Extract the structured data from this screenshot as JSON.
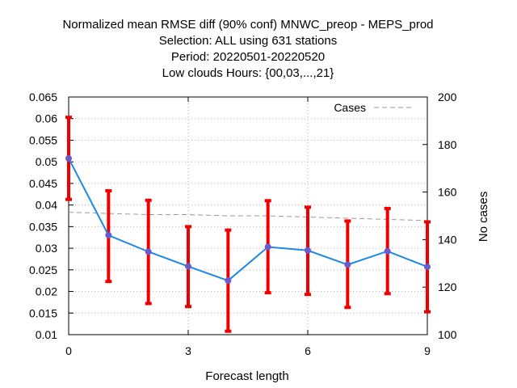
{
  "chart_data": {
    "type": "line",
    "title_lines": [
      "Normalized mean RMSE diff (90% conf) MNWC_preop - MEPS_prod",
      "Selection: ALL using   631 stations",
      "Period: 20220501-20220520",
      "Low clouds   Hours: {00,03,...,21}"
    ],
    "xlabel": "Forecast length",
    "ylabel": "",
    "y2label": "No cases",
    "xlim": [
      0,
      9
    ],
    "ylim": [
      0.01,
      0.065
    ],
    "y2lim": [
      100,
      200
    ],
    "x_ticks": [
      0,
      3,
      6,
      9
    ],
    "x_tick_labels": [
      "0",
      "3",
      "6",
      "9"
    ],
    "y_ticks": [
      0.01,
      0.015,
      0.02,
      0.025,
      0.03,
      0.035,
      0.04,
      0.045,
      0.05,
      0.055,
      0.06,
      0.065
    ],
    "y_tick_labels": [
      "0.01",
      "0.015",
      "0.02",
      "0.025",
      "0.03",
      "0.035",
      "0.04",
      "0.045",
      "0.05",
      "0.055",
      "0.06",
      "0.065"
    ],
    "y2_ticks": [
      100,
      120,
      140,
      160,
      180,
      200
    ],
    "y2_tick_labels": [
      "100",
      "120",
      "140",
      "160",
      "180",
      "200"
    ],
    "grid": true,
    "legend": {
      "placement": "top-right",
      "entries": [
        "Cases"
      ]
    },
    "series": [
      {
        "role": "rmse-diff",
        "color": "#1e88e5",
        "marker_color": "#6a5acd",
        "x": [
          0,
          1,
          2,
          3,
          4,
          5,
          6,
          7,
          8,
          9
        ],
        "y": [
          0.0508,
          0.033,
          0.0292,
          0.0258,
          0.0225,
          0.0303,
          0.0295,
          0.0262,
          0.0293,
          0.0257
        ],
        "err_low": [
          0.0413,
          0.0223,
          0.0172,
          0.0165,
          0.0108,
          0.0197,
          0.0193,
          0.0163,
          0.0195,
          0.0153
        ],
        "err_high": [
          0.0603,
          0.0433,
          0.0411,
          0.035,
          0.0342,
          0.041,
          0.0395,
          0.0363,
          0.0392,
          0.0361
        ],
        "err_color": "#ee0000"
      },
      {
        "name": "Cases",
        "axis": "y2",
        "color": "#999999",
        "x": [
          0,
          1,
          2,
          3,
          4,
          5,
          6,
          7,
          8,
          9
        ],
        "y": [
          151.5,
          151.0,
          150.5,
          150.5,
          150.0,
          150.0,
          149.5,
          149.0,
          148.5,
          148.0
        ]
      }
    ]
  }
}
